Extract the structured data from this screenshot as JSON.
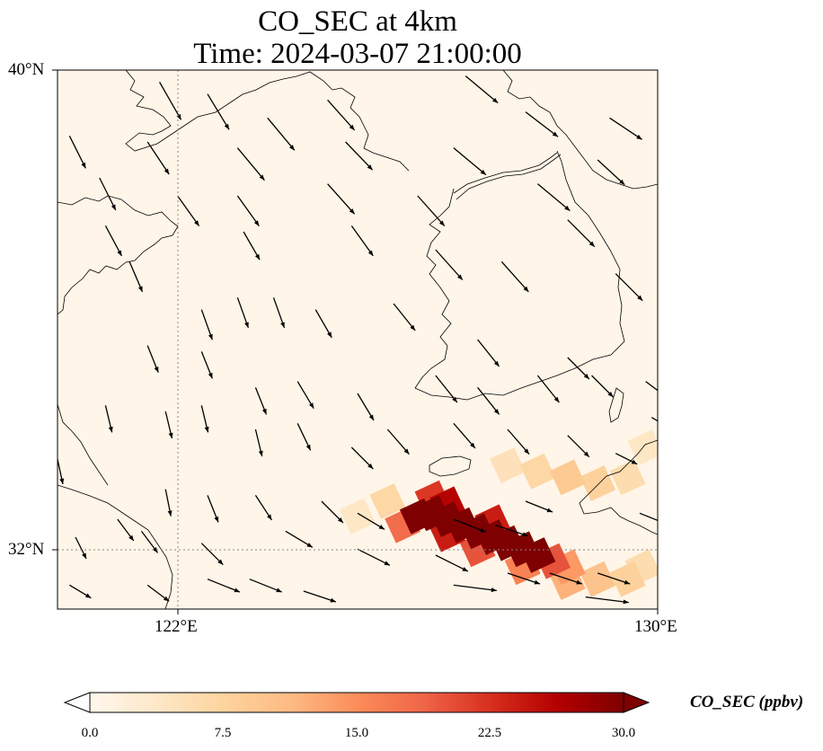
{
  "map": {
    "title_line1": "CO_SEC at 4km",
    "title_line2": "Time: 2024-03-07 21:00:00",
    "variable": "CO_SEC",
    "level": "4km",
    "time": "2024-03-07 21:00:00",
    "extent": {
      "lon_min": 120,
      "lon_max": 130,
      "lat_min": 31,
      "lat_max": 40
    },
    "lat_labels": [
      "40°N",
      "32°N"
    ],
    "lon_labels": [
      "122°E",
      "130°E"
    ],
    "gridlines": {
      "lon": [
        122
      ],
      "lat": [
        32
      ],
      "style": "dotted"
    },
    "colorbar": {
      "label": "CO_SEC (ppbv)",
      "ticks": [
        "0.0",
        "7.5",
        "15.0",
        "22.5",
        "30.0"
      ],
      "min": 0,
      "max": 30,
      "extend": "both",
      "colormap": "OrRd",
      "colors": [
        "#fff7ec",
        "#fee8c8",
        "#fdd49e",
        "#fdbb84",
        "#fc8d59",
        "#ef6548",
        "#d7301f",
        "#b30000",
        "#7f0000"
      ]
    },
    "plume_cells": [
      {
        "lon": 126.0,
        "lat": 32.55,
        "value": 30
      },
      {
        "lon": 126.25,
        "lat": 32.6,
        "value": 30
      },
      {
        "lon": 126.5,
        "lat": 32.5,
        "value": 30
      },
      {
        "lon": 126.75,
        "lat": 32.4,
        "value": 30
      },
      {
        "lon": 127.0,
        "lat": 32.3,
        "value": 30
      },
      {
        "lon": 127.25,
        "lat": 32.2,
        "value": 30
      },
      {
        "lon": 127.5,
        "lat": 32.1,
        "value": 30
      },
      {
        "lon": 127.75,
        "lat": 32.0,
        "value": 30
      },
      {
        "lon": 128.0,
        "lat": 31.9,
        "value": 30
      },
      {
        "lon": 126.5,
        "lat": 32.75,
        "value": 26
      },
      {
        "lon": 126.25,
        "lat": 32.85,
        "value": 22
      },
      {
        "lon": 127.25,
        "lat": 32.45,
        "value": 24
      },
      {
        "lon": 128.25,
        "lat": 31.8,
        "value": 20
      },
      {
        "lon": 128.5,
        "lat": 31.7,
        "value": 14
      },
      {
        "lon": 125.75,
        "lat": 32.4,
        "value": 18
      },
      {
        "lon": 126.5,
        "lat": 32.25,
        "value": 24
      },
      {
        "lon": 127.0,
        "lat": 32.0,
        "value": 20
      },
      {
        "lon": 127.75,
        "lat": 31.7,
        "value": 16
      },
      {
        "lon": 128.5,
        "lat": 31.45,
        "value": 12
      },
      {
        "lon": 129.0,
        "lat": 31.5,
        "value": 10
      },
      {
        "lon": 129.5,
        "lat": 31.5,
        "value": 8
      },
      {
        "lon": 129.75,
        "lat": 31.7,
        "value": 6
      },
      {
        "lon": 125.5,
        "lat": 32.8,
        "value": 7
      },
      {
        "lon": 125.0,
        "lat": 32.55,
        "value": 4
      },
      {
        "lon": 128.0,
        "lat": 33.3,
        "value": 7
      },
      {
        "lon": 128.5,
        "lat": 33.2,
        "value": 9
      },
      {
        "lon": 129.0,
        "lat": 33.1,
        "value": 8
      },
      {
        "lon": 129.5,
        "lat": 33.2,
        "value": 6
      },
      {
        "lon": 127.5,
        "lat": 33.4,
        "value": 5
      },
      {
        "lon": 129.8,
        "lat": 33.7,
        "value": 4
      }
    ],
    "wind_vectors": [
      {
        "lon": 121.7,
        "lat": 39.8,
        "u": 2.0,
        "v": -3.5
      },
      {
        "lon": 122.5,
        "lat": 39.6,
        "u": 2.0,
        "v": -3.3
      },
      {
        "lon": 123.5,
        "lat": 39.2,
        "u": 2.5,
        "v": -3.0
      },
      {
        "lon": 124.5,
        "lat": 39.5,
        "u": 2.5,
        "v": -2.8
      },
      {
        "lon": 126.8,
        "lat": 39.9,
        "u": 3.0,
        "v": -2.5
      },
      {
        "lon": 127.8,
        "lat": 39.3,
        "u": 3.0,
        "v": -2.3
      },
      {
        "lon": 129.2,
        "lat": 39.2,
        "u": 3.0,
        "v": -2.0
      },
      {
        "lon": 120.2,
        "lat": 38.9,
        "u": 1.5,
        "v": -3.0
      },
      {
        "lon": 121.5,
        "lat": 38.8,
        "u": 2.0,
        "v": -3.0
      },
      {
        "lon": 123.0,
        "lat": 38.7,
        "u": 2.5,
        "v": -3.0
      },
      {
        "lon": 124.8,
        "lat": 38.8,
        "u": 2.5,
        "v": -2.6
      },
      {
        "lon": 126.6,
        "lat": 38.7,
        "u": 3.0,
        "v": -2.5
      },
      {
        "lon": 128.0,
        "lat": 38.1,
        "u": 3.0,
        "v": -2.5
      },
      {
        "lon": 129.0,
        "lat": 38.5,
        "u": 2.5,
        "v": -2.3
      },
      {
        "lon": 120.7,
        "lat": 38.2,
        "u": 1.5,
        "v": -3.0
      },
      {
        "lon": 122.0,
        "lat": 37.9,
        "u": 2.0,
        "v": -2.8
      },
      {
        "lon": 123.0,
        "lat": 37.9,
        "u": 2.0,
        "v": -2.8
      },
      {
        "lon": 124.5,
        "lat": 38.1,
        "u": 2.5,
        "v": -2.8
      },
      {
        "lon": 126.0,
        "lat": 37.9,
        "u": 2.5,
        "v": -2.8
      },
      {
        "lon": 128.5,
        "lat": 37.5,
        "u": 2.5,
        "v": -2.5
      },
      {
        "lon": 120.8,
        "lat": 37.4,
        "u": 1.5,
        "v": -2.8
      },
      {
        "lon": 123.1,
        "lat": 37.3,
        "u": 1.5,
        "v": -2.6
      },
      {
        "lon": 124.9,
        "lat": 37.4,
        "u": 2.0,
        "v": -2.8
      },
      {
        "lon": 126.3,
        "lat": 37.0,
        "u": 2.5,
        "v": -2.8
      },
      {
        "lon": 127.4,
        "lat": 36.8,
        "u": 2.5,
        "v": -2.8
      },
      {
        "lon": 129.3,
        "lat": 36.6,
        "u": 2.5,
        "v": -2.5
      },
      {
        "lon": 121.2,
        "lat": 36.8,
        "u": 1.2,
        "v": -2.8
      },
      {
        "lon": 122.4,
        "lat": 36.0,
        "u": 1.0,
        "v": -2.8
      },
      {
        "lon": 123.0,
        "lat": 36.2,
        "u": 1.0,
        "v": -2.8
      },
      {
        "lon": 123.6,
        "lat": 36.2,
        "u": 1.0,
        "v": -2.8
      },
      {
        "lon": 124.3,
        "lat": 36.0,
        "u": 1.5,
        "v": -2.6
      },
      {
        "lon": 125.6,
        "lat": 36.1,
        "u": 2.0,
        "v": -2.5
      },
      {
        "lon": 127.0,
        "lat": 35.5,
        "u": 2.0,
        "v": -2.5
      },
      {
        "lon": 128.5,
        "lat": 35.2,
        "u": 2.0,
        "v": -2.0
      },
      {
        "lon": 129.8,
        "lat": 34.8,
        "u": 2.0,
        "v": -1.5
      },
      {
        "lon": 121.5,
        "lat": 35.4,
        "u": 1.0,
        "v": -2.5
      },
      {
        "lon": 122.4,
        "lat": 35.3,
        "u": 1.0,
        "v": -2.5
      },
      {
        "lon": 123.3,
        "lat": 34.7,
        "u": 1.0,
        "v": -2.5
      },
      {
        "lon": 124.0,
        "lat": 34.8,
        "u": 1.5,
        "v": -2.5
      },
      {
        "lon": 125.0,
        "lat": 34.6,
        "u": 1.5,
        "v": -2.5
      },
      {
        "lon": 126.3,
        "lat": 34.9,
        "u": 2.0,
        "v": -2.5
      },
      {
        "lon": 127.0,
        "lat": 34.7,
        "u": 2.0,
        "v": -2.5
      },
      {
        "lon": 128.0,
        "lat": 34.9,
        "u": 2.0,
        "v": -2.5
      },
      {
        "lon": 128.9,
        "lat": 34.9,
        "u": 2.0,
        "v": -2.0
      },
      {
        "lon": 129.9,
        "lat": 34.2,
        "u": 2.0,
        "v": -1.2
      },
      {
        "lon": 120.8,
        "lat": 34.4,
        "u": 0.6,
        "v": -2.5
      },
      {
        "lon": 121.8,
        "lat": 34.3,
        "u": 0.6,
        "v": -2.5
      },
      {
        "lon": 122.4,
        "lat": 34.4,
        "u": 0.6,
        "v": -2.5
      },
      {
        "lon": 123.3,
        "lat": 34.0,
        "u": 0.6,
        "v": -2.5
      },
      {
        "lon": 124.0,
        "lat": 34.1,
        "u": 1.2,
        "v": -2.5
      },
      {
        "lon": 125.5,
        "lat": 34.0,
        "u": 2.0,
        "v": -2.3
      },
      {
        "lon": 126.6,
        "lat": 34.1,
        "u": 2.0,
        "v": -2.3
      },
      {
        "lon": 127.5,
        "lat": 34.0,
        "u": 2.0,
        "v": -2.3
      },
      {
        "lon": 128.5,
        "lat": 33.9,
        "u": 2.0,
        "v": -2.0
      },
      {
        "lon": 129.3,
        "lat": 33.6,
        "u": 2.0,
        "v": -1.0
      },
      {
        "lon": 124.9,
        "lat": 33.7,
        "u": 2.0,
        "v": -2.0
      },
      {
        "lon": 120.0,
        "lat": 33.5,
        "u": 0.5,
        "v": -2.3
      },
      {
        "lon": 121.8,
        "lat": 33.0,
        "u": 0.5,
        "v": -2.5
      },
      {
        "lon": 122.5,
        "lat": 32.9,
        "u": 1.0,
        "v": -2.5
      },
      {
        "lon": 123.3,
        "lat": 32.9,
        "u": 1.5,
        "v": -2.3
      },
      {
        "lon": 124.4,
        "lat": 32.8,
        "u": 2.0,
        "v": -2.0
      },
      {
        "lon": 125.0,
        "lat": 32.6,
        "u": 2.5,
        "v": -1.5
      },
      {
        "lon": 127.8,
        "lat": 32.8,
        "u": 2.5,
        "v": -1.0
      },
      {
        "lon": 129.7,
        "lat": 32.6,
        "u": 2.5,
        "v": -1.0
      },
      {
        "lon": 120.3,
        "lat": 32.2,
        "u": 1.0,
        "v": -2.0
      },
      {
        "lon": 121.0,
        "lat": 32.5,
        "u": 1.5,
        "v": -2.0
      },
      {
        "lon": 121.4,
        "lat": 32.3,
        "u": 1.5,
        "v": -2.0
      },
      {
        "lon": 122.4,
        "lat": 32.1,
        "u": 2.0,
        "v": -2.0
      },
      {
        "lon": 123.8,
        "lat": 32.3,
        "u": 2.5,
        "v": -1.5
      },
      {
        "lon": 125.0,
        "lat": 32.0,
        "u": 3.0,
        "v": -1.5
      },
      {
        "lon": 126.3,
        "lat": 31.9,
        "u": 3.0,
        "v": -1.5
      },
      {
        "lon": 127.5,
        "lat": 31.6,
        "u": 3.0,
        "v": -1.0
      },
      {
        "lon": 128.2,
        "lat": 31.6,
        "u": 3.0,
        "v": -1.0
      },
      {
        "lon": 126.6,
        "lat": 32.5,
        "u": 3.0,
        "v": -1.2
      },
      {
        "lon": 127.3,
        "lat": 32.4,
        "u": 3.0,
        "v": -1.0
      },
      {
        "lon": 121.5,
        "lat": 31.4,
        "u": 2.0,
        "v": -1.5
      },
      {
        "lon": 122.5,
        "lat": 31.5,
        "u": 3.0,
        "v": -1.2
      },
      {
        "lon": 123.2,
        "lat": 31.5,
        "u": 3.0,
        "v": -1.2
      },
      {
        "lon": 124.1,
        "lat": 31.3,
        "u": 3.0,
        "v": -1.0
      },
      {
        "lon": 126.6,
        "lat": 31.4,
        "u": 4.0,
        "v": -0.5
      },
      {
        "lon": 128.8,
        "lat": 31.2,
        "u": 4.0,
        "v": -0.5
      },
      {
        "lon": 120.2,
        "lat": 31.4,
        "u": 2.0,
        "v": -1.2
      },
      {
        "lon": 129.0,
        "lat": 31.6,
        "u": 3.0,
        "v": -1.0
      }
    ]
  }
}
